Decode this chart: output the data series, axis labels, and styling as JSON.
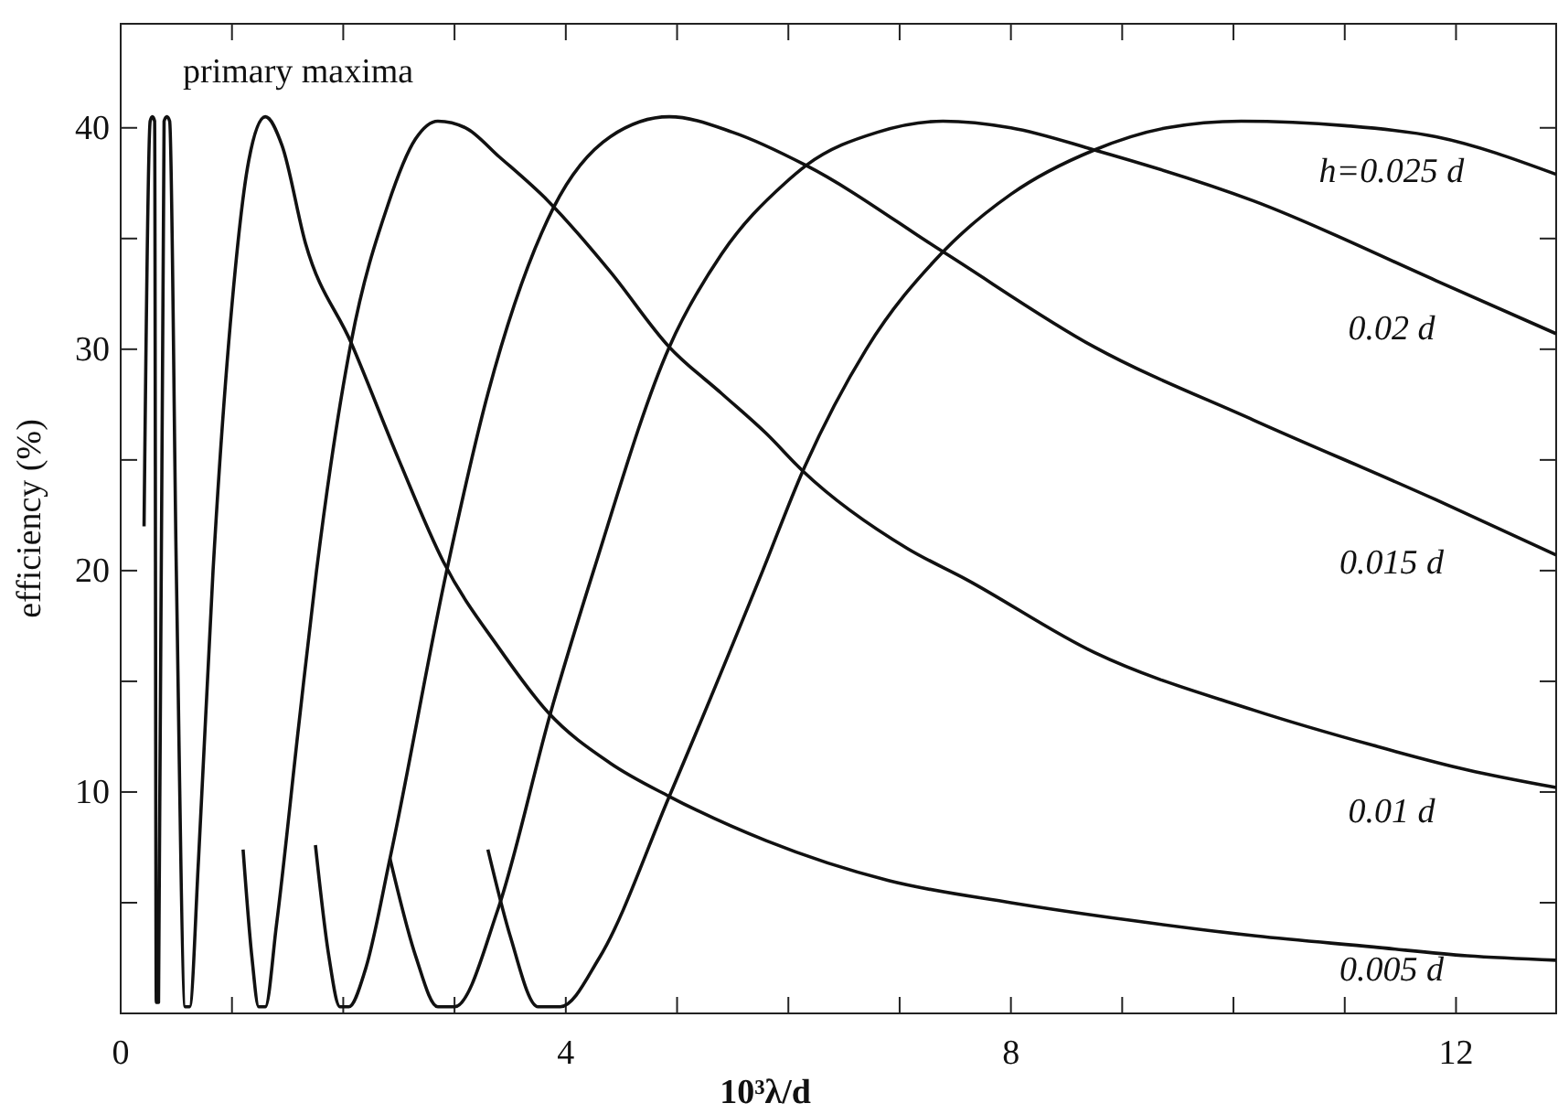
{
  "chart_data": {
    "type": "line",
    "xlabel": "10³λ/d",
    "ylabel": "efficiency (%)",
    "annotations": [
      "primary maxima"
    ],
    "xlim": [
      0,
      12.9
    ],
    "ylim": [
      0,
      44.7
    ],
    "xticks": [
      0,
      {
        "value": 1,
        "label": null
      },
      {
        "value": 2,
        "label": null
      },
      {
        "value": 3,
        "label": null
      },
      4,
      {
        "value": 5,
        "label": null
      },
      {
        "value": 6,
        "label": null
      },
      {
        "value": 7,
        "label": null
      },
      8,
      {
        "value": 9,
        "label": null
      },
      {
        "value": 10,
        "label": null
      },
      {
        "value": 11,
        "label": null
      },
      12
    ],
    "yticks": [
      {
        "value": 0,
        "label": null
      },
      {
        "value": 5,
        "label": null
      },
      10,
      {
        "value": 15,
        "label": null
      },
      20,
      {
        "value": 25,
        "label": null
      },
      30,
      {
        "value": 35,
        "label": null
      },
      40
    ],
    "grid": false,
    "legend": false,
    "marker": "none",
    "line_style": "solid",
    "series": [
      {
        "name": "0.005 d",
        "color": "#111111",
        "x": [
          0.21,
          0.265,
          0.285,
          0.305,
          0.32,
          0.34,
          0.39,
          0.415,
          0.44,
          0.5,
          0.58,
          0.62,
          0.7,
          0.83,
          1.0,
          1.15,
          1.3,
          1.45,
          1.66,
          2.07,
          2.5,
          2.9,
          3.4,
          3.84,
          4.4,
          4.93,
          5.8,
          6.9,
          8.0,
          9.08,
          10.2,
          11.26,
          12.1,
          12.9
        ],
        "values": [
          22,
          40.3,
          40.5,
          40.3,
          0.5,
          0.5,
          40.3,
          40.5,
          40.3,
          20,
          0.3,
          0.3,
          7,
          20,
          32,
          38.5,
          40.5,
          39.2,
          34.8,
          30.3,
          25,
          20.4,
          16.5,
          13.6,
          11.3,
          9.8,
          7.8,
          6,
          5,
          4.2,
          3.5,
          3,
          2.6,
          2.4
        ]
      },
      {
        "name": "0.01 d",
        "color": "#111111",
        "x": [
          1.1,
          1.18,
          1.24,
          1.3,
          1.4,
          1.6,
          1.76,
          2.07,
          2.4,
          2.65,
          2.85,
          3.1,
          3.4,
          3.84,
          4.4,
          4.93,
          5.4,
          5.8,
          6.13,
          7.07,
          7.6,
          8.75,
          10.18,
          11.26,
          12.1,
          12.9
        ],
        "values": [
          7.4,
          2.5,
          0.3,
          0.3,
          4,
          13,
          20,
          30.3,
          36.5,
          39.5,
          40.3,
          40,
          38.7,
          36.7,
          33.5,
          30.1,
          28,
          26.2,
          24.5,
          21,
          19.6,
          16.3,
          13.7,
          12.1,
          11,
          10.2
        ]
      },
      {
        "name": "0.015 d",
        "color": "#111111",
        "x": [
          1.75,
          1.87,
          1.97,
          2.05,
          2.2,
          2.42,
          2.93,
          3.3,
          3.89,
          4.4,
          4.93,
          5.5,
          6.16,
          7.39,
          8.75,
          10.18,
          11.82,
          12.9
        ],
        "values": [
          7.6,
          2.6,
          0.3,
          0.3,
          2,
          7,
          20,
          28,
          36.4,
          39.6,
          40.5,
          39.8,
          38.3,
          34.4,
          30.1,
          26.8,
          23.2,
          20.7
        ]
      },
      {
        "name": "0.02 d",
        "color": "#111111",
        "x": [
          2.42,
          2.65,
          2.85,
          3.0,
          3.39,
          3.87,
          4.25,
          4.93,
          5.4,
          5.97,
          6.16,
          6.8,
          7.39,
          8.0,
          8.75,
          10.18,
          11.82,
          12.9
        ],
        "values": [
          7,
          2.6,
          0.3,
          0.3,
          4.7,
          13.7,
          20,
          30.1,
          34.3,
          37.5,
          38.3,
          39.8,
          40.3,
          40,
          39,
          36.7,
          33.1,
          30.7
        ]
      },
      {
        "name": "h=0.025 d",
        "color": "#111111",
        "x": [
          3.3,
          3.5,
          3.75,
          3.95,
          4.3,
          4.93,
          5.77,
          6.13,
          6.7,
          7.39,
          8.0,
          8.75,
          9.4,
          10.07,
          11.0,
          11.82,
          12.9
        ],
        "values": [
          7.4,
          3.5,
          0.3,
          0.3,
          2.5,
          9.8,
          20,
          24.5,
          30,
          34.4,
          37,
          39,
          40,
          40.3,
          40.1,
          39.6,
          37.9
        ]
      }
    ]
  }
}
